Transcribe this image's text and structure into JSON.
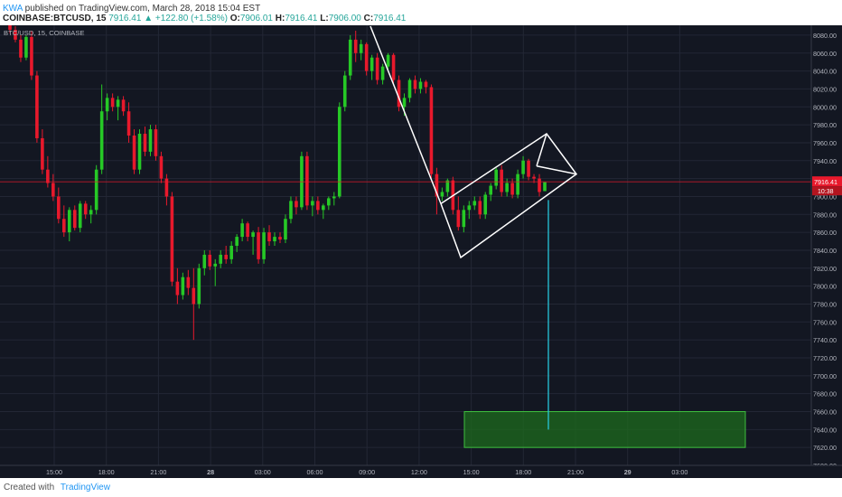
{
  "header": {
    "author": "KWA",
    "published": "published on TradingView.com, March 28, 2018 15:04 EST",
    "symbol": "COINBASE:BTCUSD, 15",
    "last": "7916.41",
    "change": "▲ +122.80 (+1.58%)",
    "o_label": "O:",
    "o": "7906.01",
    "h_label": "H:",
    "h": "7916.41",
    "l_label": "L:",
    "l": "7906.00",
    "c_label": "C:",
    "c": "7916.41"
  },
  "footer": {
    "created": "Created with",
    "logo": "TradingView"
  },
  "colors": {
    "up": "#26c926",
    "down": "#e8192c",
    "bg": "#131722",
    "grid": "#232735",
    "axis_text": "#b2b5be",
    "pattern": "#ffffff",
    "target_line": "#26c6da",
    "target_fill": "#1d6b1d"
  },
  "chart_data": {
    "type": "candlestick",
    "title": "BTC/USD, 15, COINBASE",
    "y_ticks": [
      "8080.00",
      "8060.00",
      "8040.00",
      "8020.00",
      "8000.00",
      "7980.00",
      "7960.00",
      "7940.00",
      "7920.00",
      "7900.00",
      "7880.00",
      "7860.00",
      "7840.00",
      "7820.00",
      "7800.00",
      "7780.00",
      "7760.00",
      "7740.00",
      "7720.00",
      "7700.00",
      "7680.00",
      "7660.00",
      "7640.00",
      "7620.00",
      "7600.00"
    ],
    "ylim": [
      7600,
      8090
    ],
    "x_ticks": [
      "15:00",
      "18:00",
      "21:00",
      "28",
      "03:00",
      "06:00",
      "09:00",
      "12:00",
      "15:00",
      "18:00",
      "21:00",
      "29",
      "03:00"
    ],
    "price_label": "7916.41",
    "timer_label": "10:38",
    "candles": [
      [
        8092,
        8095,
        8082,
        8086
      ],
      [
        8086,
        8090,
        8072,
        8075
      ],
      [
        8075,
        8080,
        8050,
        8055
      ],
      [
        8055,
        8080,
        8052,
        8078
      ],
      [
        8078,
        8085,
        8030,
        8035
      ],
      [
        8035,
        8040,
        7960,
        7965
      ],
      [
        7965,
        7975,
        7925,
        7930
      ],
      [
        7930,
        7945,
        7910,
        7915
      ],
      [
        7915,
        7925,
        7895,
        7900
      ],
      [
        7900,
        7910,
        7870,
        7875
      ],
      [
        7875,
        7890,
        7855,
        7860
      ],
      [
        7860,
        7888,
        7850,
        7885
      ],
      [
        7885,
        7890,
        7862,
        7865
      ],
      [
        7865,
        7895,
        7860,
        7892
      ],
      [
        7892,
        7895,
        7875,
        7880
      ],
      [
        7880,
        7890,
        7870,
        7885
      ],
      [
        7885,
        7935,
        7880,
        7930
      ],
      [
        7930,
        8025,
        7925,
        7995
      ],
      [
        7995,
        8015,
        7985,
        8010
      ],
      [
        8010,
        8015,
        7995,
        8000
      ],
      [
        8000,
        8012,
        7985,
        8008
      ],
      [
        8008,
        8012,
        7990,
        7995
      ],
      [
        7995,
        8005,
        7960,
        7968
      ],
      [
        7968,
        7975,
        7925,
        7930
      ],
      [
        7930,
        7975,
        7925,
        7970
      ],
      [
        7970,
        7978,
        7945,
        7950
      ],
      [
        7950,
        7980,
        7945,
        7975
      ],
      [
        7975,
        7980,
        7940,
        7945
      ],
      [
        7945,
        7950,
        7915,
        7920
      ],
      [
        7920,
        7925,
        7890,
        7900
      ],
      [
        7900,
        7905,
        7800,
        7805
      ],
      [
        7805,
        7820,
        7780,
        7790
      ],
      [
        7790,
        7815,
        7785,
        7810
      ],
      [
        7810,
        7818,
        7790,
        7798
      ],
      [
        7798,
        7820,
        7740,
        7780
      ],
      [
        7780,
        7825,
        7775,
        7820
      ],
      [
        7820,
        7840,
        7812,
        7835
      ],
      [
        7835,
        7840,
        7818,
        7822
      ],
      [
        7822,
        7830,
        7800,
        7825
      ],
      [
        7825,
        7840,
        7820,
        7835
      ],
      [
        7835,
        7845,
        7825,
        7830
      ],
      [
        7830,
        7850,
        7825,
        7845
      ],
      [
        7845,
        7858,
        7838,
        7855
      ],
      [
        7855,
        7875,
        7850,
        7870
      ],
      [
        7870,
        7872,
        7850,
        7855
      ],
      [
        7855,
        7862,
        7835,
        7860
      ],
      [
        7860,
        7866,
        7825,
        7830
      ],
      [
        7830,
        7865,
        7825,
        7860
      ],
      [
        7860,
        7868,
        7845,
        7850
      ],
      [
        7850,
        7860,
        7845,
        7855
      ],
      [
        7855,
        7860,
        7848,
        7852
      ],
      [
        7852,
        7880,
        7848,
        7875
      ],
      [
        7875,
        7900,
        7870,
        7895
      ],
      [
        7895,
        7900,
        7880,
        7888
      ],
      [
        7888,
        7950,
        7885,
        7945
      ],
      [
        7945,
        7950,
        7885,
        7890
      ],
      [
        7890,
        7900,
        7878,
        7895
      ],
      [
        7895,
        7900,
        7880,
        7885
      ],
      [
        7885,
        7892,
        7875,
        7890
      ],
      [
        7890,
        7900,
        7885,
        7898
      ],
      [
        7898,
        7905,
        7890,
        7900
      ],
      [
        7900,
        8005,
        7898,
        8000
      ],
      [
        8000,
        8040,
        7995,
        8035
      ],
      [
        8035,
        8080,
        8030,
        8075
      ],
      [
        8075,
        8085,
        8050,
        8060
      ],
      [
        8060,
        8075,
        8052,
        8070
      ],
      [
        8070,
        8072,
        8035,
        8040
      ],
      [
        8040,
        8058,
        8030,
        8055
      ],
      [
        8055,
        8060,
        8025,
        8030
      ],
      [
        8030,
        8048,
        8025,
        8045
      ],
      [
        8045,
        8060,
        8040,
        8058
      ],
      [
        8058,
        8060,
        8025,
        8030
      ],
      [
        8030,
        8035,
        7995,
        8000
      ],
      [
        8000,
        8015,
        7990,
        8010
      ],
      [
        8010,
        8032,
        8005,
        8030
      ],
      [
        8030,
        8035,
        8015,
        8020
      ],
      [
        8020,
        8032,
        8015,
        8028
      ],
      [
        8028,
        8030,
        8015,
        8022
      ],
      [
        8022,
        8025,
        7920,
        7925
      ],
      [
        7925,
        7932,
        7880,
        7900
      ],
      [
        7900,
        7910,
        7895,
        7905
      ],
      [
        7905,
        7920,
        7900,
        7918
      ],
      [
        7918,
        7922,
        7880,
        7885
      ],
      [
        7885,
        7900,
        7862,
        7866
      ],
      [
        7866,
        7890,
        7860,
        7885
      ],
      [
        7885,
        7895,
        7875,
        7890
      ],
      [
        7890,
        7900,
        7885,
        7895
      ],
      [
        7895,
        7900,
        7875,
        7880
      ],
      [
        7880,
        7905,
        7875,
        7902
      ],
      [
        7902,
        7915,
        7895,
        7912
      ],
      [
        7912,
        7932,
        7908,
        7930
      ],
      [
        7930,
        7935,
        7900,
        7905
      ],
      [
        7905,
        7920,
        7900,
        7915
      ],
      [
        7915,
        7920,
        7898,
        7902
      ],
      [
        7902,
        7930,
        7898,
        7925
      ],
      [
        7925,
        7945,
        7920,
        7940
      ],
      [
        7940,
        7942,
        7918,
        7922
      ],
      [
        7922,
        7925,
        7915,
        7920
      ],
      [
        7920,
        7925,
        7900,
        7905
      ],
      [
        7906,
        7916,
        7906,
        7916
      ]
    ],
    "annotations": {
      "flagpole": [
        [
          "06:45",
          8090
        ],
        [
          "11:15",
          7892
        ]
      ],
      "flag_channel": [
        [
          "11:15",
          7892
        ],
        [
          "15:45",
          7970
        ],
        [
          "16:30",
          7925
        ],
        [
          "12:00",
          7832
        ],
        [
          "11:15",
          7892
        ]
      ],
      "target_line_price": 7640,
      "target_zone": {
        "from": 7620,
        "to": 7660
      }
    }
  }
}
